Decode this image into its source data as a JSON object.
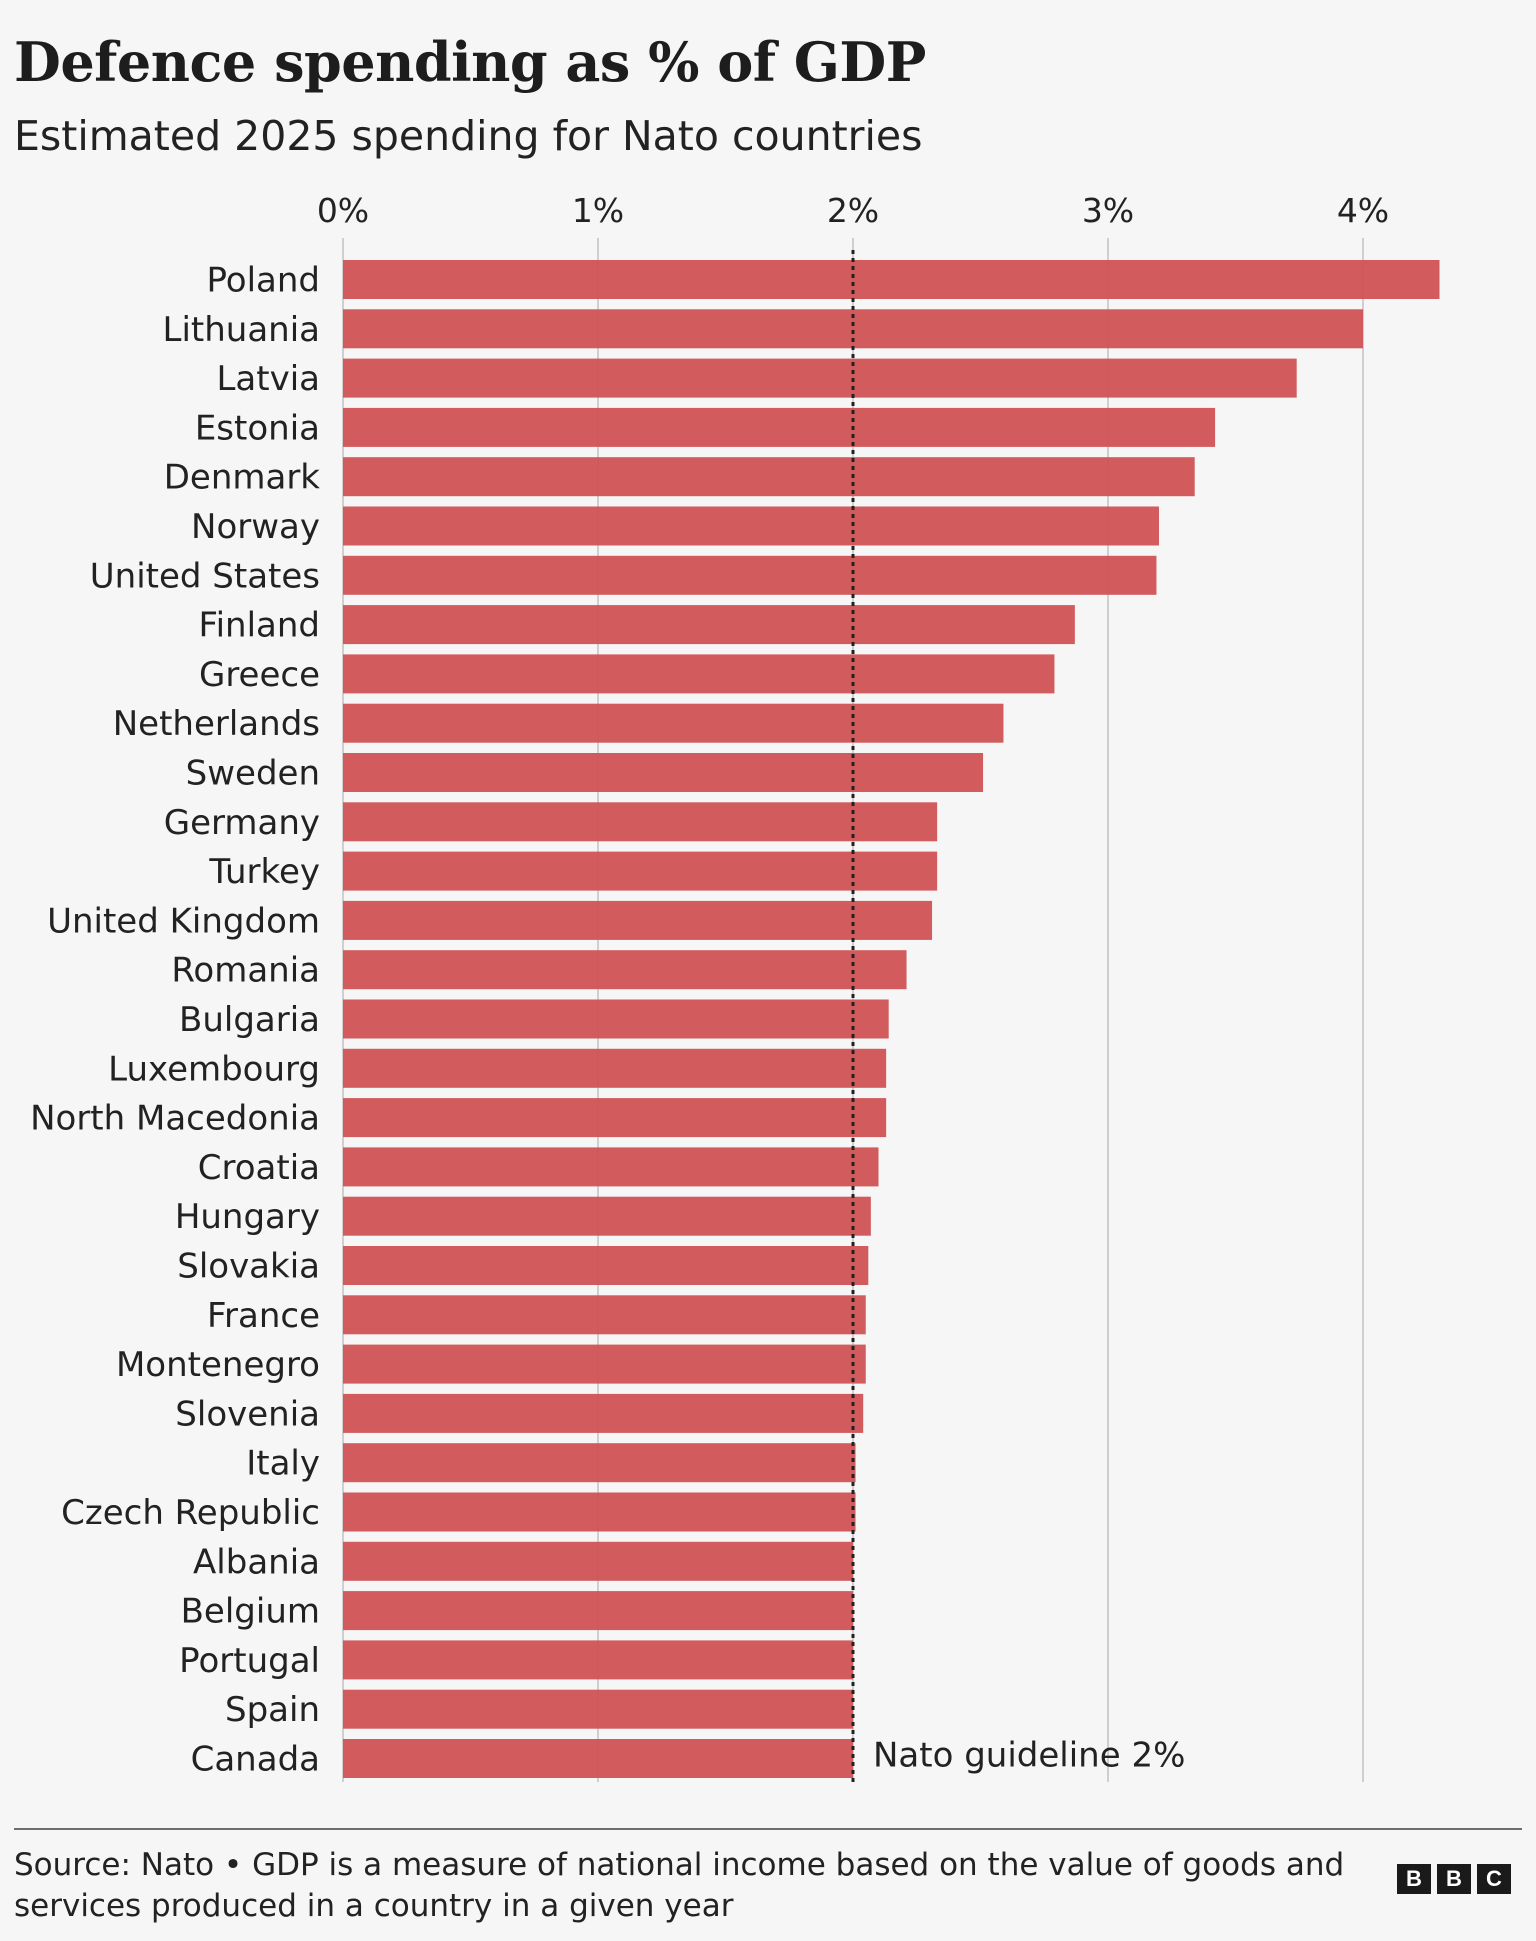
{
  "header": {
    "title": "Defence spending as % of GDP",
    "subtitle": "Estimated 2025 spending for Nato countries"
  },
  "footer": {
    "source_text": "Source: Nato • GDP is a measure of national income based on the value of goods and services produced in a country in a given year",
    "logo_letters": [
      "B",
      "B",
      "C"
    ]
  },
  "colors": {
    "bar": "#cf5456",
    "grid": "#cfcfcf",
    "guideline": "#222222",
    "background": "#f6f6f6"
  },
  "chart_data": {
    "type": "bar",
    "orientation": "horizontal",
    "title": "Defence spending as % of GDP",
    "subtitle": "Estimated 2025 spending for Nato countries",
    "xlabel": "",
    "ylabel": "",
    "xlim": [
      0,
      4.3
    ],
    "x_ticks": [
      0,
      1,
      2,
      3,
      4
    ],
    "x_tick_labels": [
      "0%",
      "1%",
      "2%",
      "3%",
      "4%"
    ],
    "x_axis_position": "top",
    "grid": true,
    "categories": [
      "Poland",
      "Lithuania",
      "Latvia",
      "Estonia",
      "Denmark",
      "Norway",
      "United States",
      "Finland",
      "Greece",
      "Netherlands",
      "Sweden",
      "Germany",
      "Turkey",
      "United Kingdom",
      "Romania",
      "Bulgaria",
      "Luxembourg",
      "North Macedonia",
      "Croatia",
      "Hungary",
      "Slovakia",
      "France",
      "Montenegro",
      "Slovenia",
      "Italy",
      "Czech Republic",
      "Albania",
      "Belgium",
      "Portugal",
      "Spain",
      "Canada"
    ],
    "values": [
      4.3,
      4.0,
      3.74,
      3.42,
      3.34,
      3.2,
      3.19,
      2.87,
      2.79,
      2.59,
      2.51,
      2.33,
      2.33,
      2.31,
      2.21,
      2.14,
      2.13,
      2.13,
      2.1,
      2.07,
      2.06,
      2.05,
      2.05,
      2.04,
      2.01,
      2.01,
      2.0,
      2.0,
      2.0,
      2.0,
      2.0
    ],
    "annotations": [
      {
        "text": "Nato guideline 2%",
        "x": 2
      }
    ],
    "reference_line": {
      "value": 2,
      "style": "dotted",
      "label": "Nato guideline 2%"
    }
  }
}
